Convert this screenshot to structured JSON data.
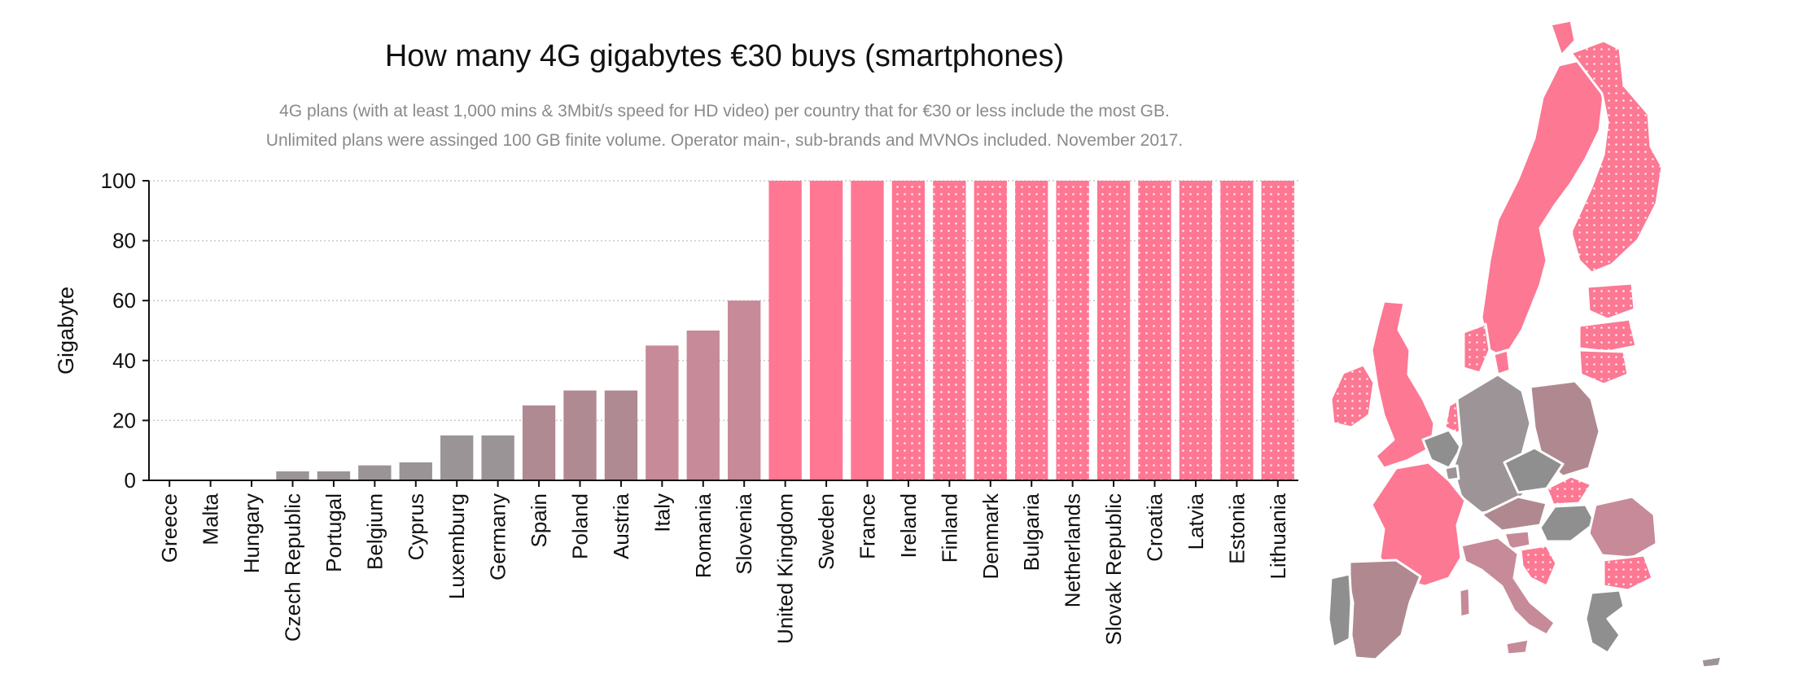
{
  "chart_data": {
    "type": "bar",
    "title": "How many 4G gigabytes €30 buys (smartphones)",
    "subtitle_line1": "4G plans (with at least 1,000 mins & 3Mbit/s speed for HD video) per country that for €30 or less include the most GB.",
    "subtitle_line2": "Unlimited plans were assinged 100 GB finite volume. Operator main-, sub-brands and MVNOs included. November 2017.",
    "xlabel": "",
    "ylabel": "Gigabyte",
    "ylim": [
      0,
      100
    ],
    "yticks": [
      0,
      20,
      40,
      60,
      80,
      100
    ],
    "grid": true,
    "categories": [
      "Greece",
      "Malta",
      "Hungary",
      "Czech Republic",
      "Portugal",
      "Belgium",
      "Cyprus",
      "Luxemburg",
      "Germany",
      "Spain",
      "Poland",
      "Austria",
      "Italy",
      "Romania",
      "Slovenia",
      "United Kingdom",
      "Sweden",
      "France",
      "Ireland",
      "Finland",
      "Denmark",
      "Bulgaria",
      "Netherlands",
      "Slovak Republic",
      "Croatia",
      "Latvia",
      "Estonia",
      "Lithuania"
    ],
    "values": [
      0,
      0,
      0,
      3,
      3,
      5,
      6,
      15,
      15,
      25,
      30,
      30,
      45,
      50,
      60,
      100,
      100,
      100,
      100,
      100,
      100,
      100,
      100,
      100,
      100,
      100,
      100,
      100
    ],
    "unlimited": [
      false,
      false,
      false,
      false,
      false,
      false,
      false,
      false,
      false,
      false,
      false,
      false,
      false,
      false,
      false,
      false,
      false,
      false,
      true,
      true,
      true,
      true,
      true,
      true,
      true,
      true,
      true,
      true
    ]
  },
  "colors": {
    "low": "#9a9496",
    "mid": "#c68a98",
    "high": "#ff7793",
    "map_gray": "#8f8f8f",
    "map_mauve": "#b08990",
    "map_pink": "#fc7893"
  },
  "map": {
    "icon": "europe-map-icon"
  }
}
